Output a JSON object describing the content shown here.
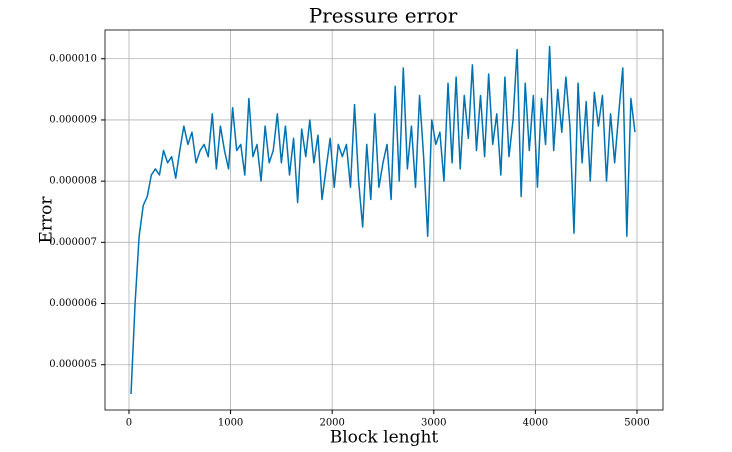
{
  "chart_data": {
    "type": "line",
    "title": "Pressure error",
    "x_label": "Block lenght",
    "y_label": "Error",
    "x": [
      20,
      60,
      100,
      140,
      180,
      220,
      260,
      300,
      340,
      380,
      420,
      460,
      500,
      540,
      580,
      620,
      660,
      700,
      740,
      780,
      820,
      860,
      900,
      940,
      980,
      1020,
      1060,
      1100,
      1140,
      1180,
      1220,
      1260,
      1300,
      1340,
      1380,
      1420,
      1460,
      1500,
      1540,
      1580,
      1620,
      1660,
      1700,
      1740,
      1780,
      1820,
      1860,
      1900,
      1940,
      1980,
      2020,
      2060,
      2100,
      2140,
      2180,
      2220,
      2260,
      2300,
      2340,
      2380,
      2420,
      2460,
      2500,
      2540,
      2580,
      2620,
      2660,
      2700,
      2740,
      2780,
      2820,
      2860,
      2900,
      2940,
      2980,
      3020,
      3060,
      3100,
      3140,
      3180,
      3220,
      3260,
      3300,
      3340,
      3380,
      3420,
      3460,
      3500,
      3540,
      3580,
      3620,
      3660,
      3700,
      3740,
      3780,
      3820,
      3860,
      3900,
      3940,
      3980,
      4020,
      4060,
      4100,
      4140,
      4180,
      4220,
      4260,
      4300,
      4340,
      4380,
      4420,
      4460,
      4500,
      4540,
      4580,
      4620,
      4660,
      4700,
      4740,
      4780,
      4820,
      4860,
      4900,
      4940,
      4980
    ],
    "series": [
      {
        "color": "#0072b2",
        "values": [
          4.52e-06,
          6e-06,
          7.1e-06,
          7.6e-06,
          7.75e-06,
          8.1e-06,
          8.2e-06,
          8.1e-06,
          8.5e-06,
          8.3e-06,
          8.4e-06,
          8.05e-06,
          8.5e-06,
          8.9e-06,
          8.6e-06,
          8.8e-06,
          8.3e-06,
          8.5e-06,
          8.6e-06,
          8.4e-06,
          9.1e-06,
          8.2e-06,
          8.9e-06,
          8.5e-06,
          8.2e-06,
          9.2e-06,
          8.5e-06,
          8.6e-06,
          8.1e-06,
          9.35e-06,
          8.4e-06,
          8.6e-06,
          8e-06,
          8.9e-06,
          8.3e-06,
          8.5e-06,
          9.1e-06,
          8.3e-06,
          8.9e-06,
          8.1e-06,
          8.7e-06,
          7.65e-06,
          8.85e-06,
          8.4e-06,
          9e-06,
          8.3e-06,
          8.75e-06,
          7.7e-06,
          8.2e-06,
          8.7e-06,
          7.9e-06,
          8.6e-06,
          8.4e-06,
          8.6e-06,
          7.9e-06,
          9.25e-06,
          8e-06,
          7.25e-06,
          8.6e-06,
          7.7e-06,
          9.1e-06,
          7.9e-06,
          8.3e-06,
          8.6e-06,
          7.7e-06,
          9.55e-06,
          8e-06,
          9.85e-06,
          8.2e-06,
          8.9e-06,
          7.9e-06,
          9.4e-06,
          8.4e-06,
          7.1e-06,
          9e-06,
          8.6e-06,
          8.8e-06,
          8e-06,
          9.6e-06,
          8.3e-06,
          9.7e-06,
          8.2e-06,
          9.4e-06,
          8.7e-06,
          9.9e-06,
          8.5e-06,
          9.4e-06,
          8.4e-06,
          9.75e-06,
          8.6e-06,
          9.1e-06,
          8.1e-06,
          9.7e-06,
          8.4e-06,
          9e-06,
          1.015e-05,
          7.75e-06,
          9.6e-06,
          8.5e-06,
          9.4e-06,
          7.9e-06,
          9.35e-06,
          8.6e-06,
          1.02e-05,
          8.5e-06,
          9.5e-06,
          8.8e-06,
          9.7e-06,
          8.9e-06,
          7.15e-06,
          9.6e-06,
          8.3e-06,
          9.3e-06,
          8e-06,
          9.45e-06,
          8.9e-06,
          9.4e-06,
          8e-06,
          9.1e-06,
          8.3e-06,
          9.1e-06,
          9.85e-06,
          7.1e-06,
          9.35e-06,
          8.8e-06
        ]
      }
    ],
    "xlim": [
      -236,
      5256
    ],
    "xticks": [
      0,
      1000,
      2000,
      3000,
      4000,
      5000
    ],
    "ylim": [
      4.26e-06,
      1.047e-05
    ],
    "yticks": [
      5e-06,
      6e-06,
      7e-06,
      8e-06,
      9e-06,
      {
        "value": 1e-05,
        "label": "0.000010"
      }
    ],
    "grid": true
  }
}
